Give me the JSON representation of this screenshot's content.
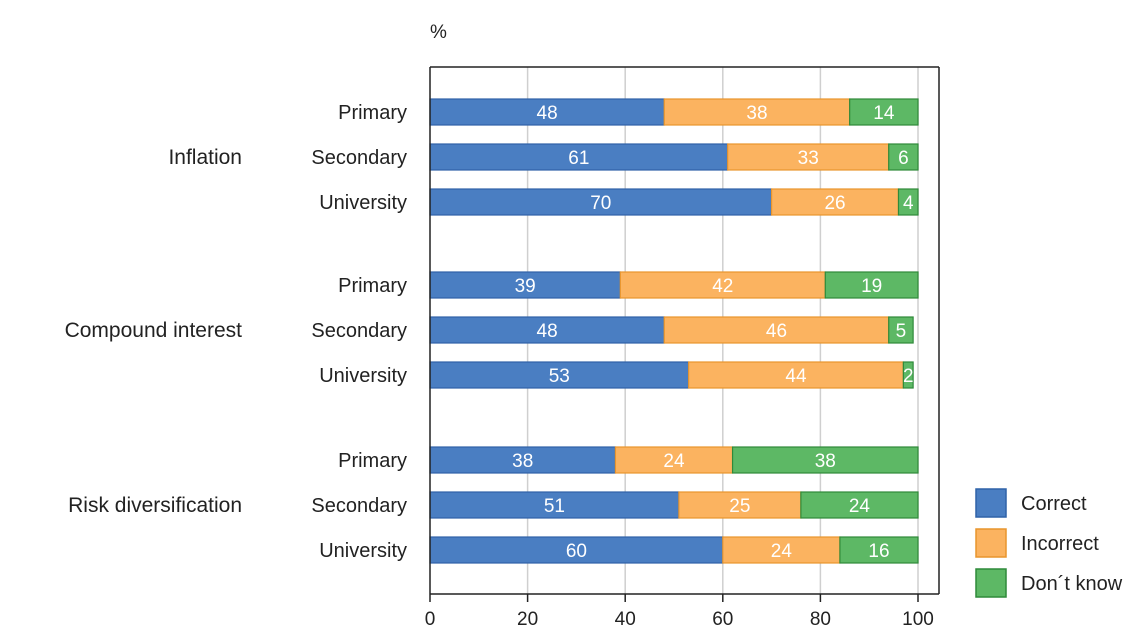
{
  "chart_data": {
    "type": "bar",
    "orientation": "horizontal",
    "stacked": true,
    "ylabel": "%",
    "xlim": [
      0,
      100
    ],
    "xticks": [
      "0",
      "20",
      "40",
      "60",
      "80",
      "100"
    ],
    "grid": true,
    "legend_position": "bottom-right",
    "groups": [
      {
        "name": "Inflation",
        "categories": [
          "Primary",
          "Secondary",
          "University"
        ]
      },
      {
        "name": "Compound interest",
        "categories": [
          "Primary",
          "Secondary",
          "University"
        ]
      },
      {
        "name": "Risk diversification",
        "categories": [
          "Primary",
          "Secondary",
          "University"
        ]
      }
    ],
    "series": [
      {
        "name": "Correct",
        "color": "#4a7ec2",
        "values": [
          48,
          61,
          70,
          39,
          48,
          53,
          38,
          51,
          60
        ]
      },
      {
        "name": "Incorrect",
        "color": "#fbb360",
        "values": [
          38,
          33,
          26,
          42,
          46,
          44,
          24,
          25,
          24
        ]
      },
      {
        "name": "Don´t know",
        "color": "#5db865",
        "values": [
          14,
          6,
          4,
          19,
          5,
          2,
          38,
          24,
          16
        ]
      }
    ]
  }
}
